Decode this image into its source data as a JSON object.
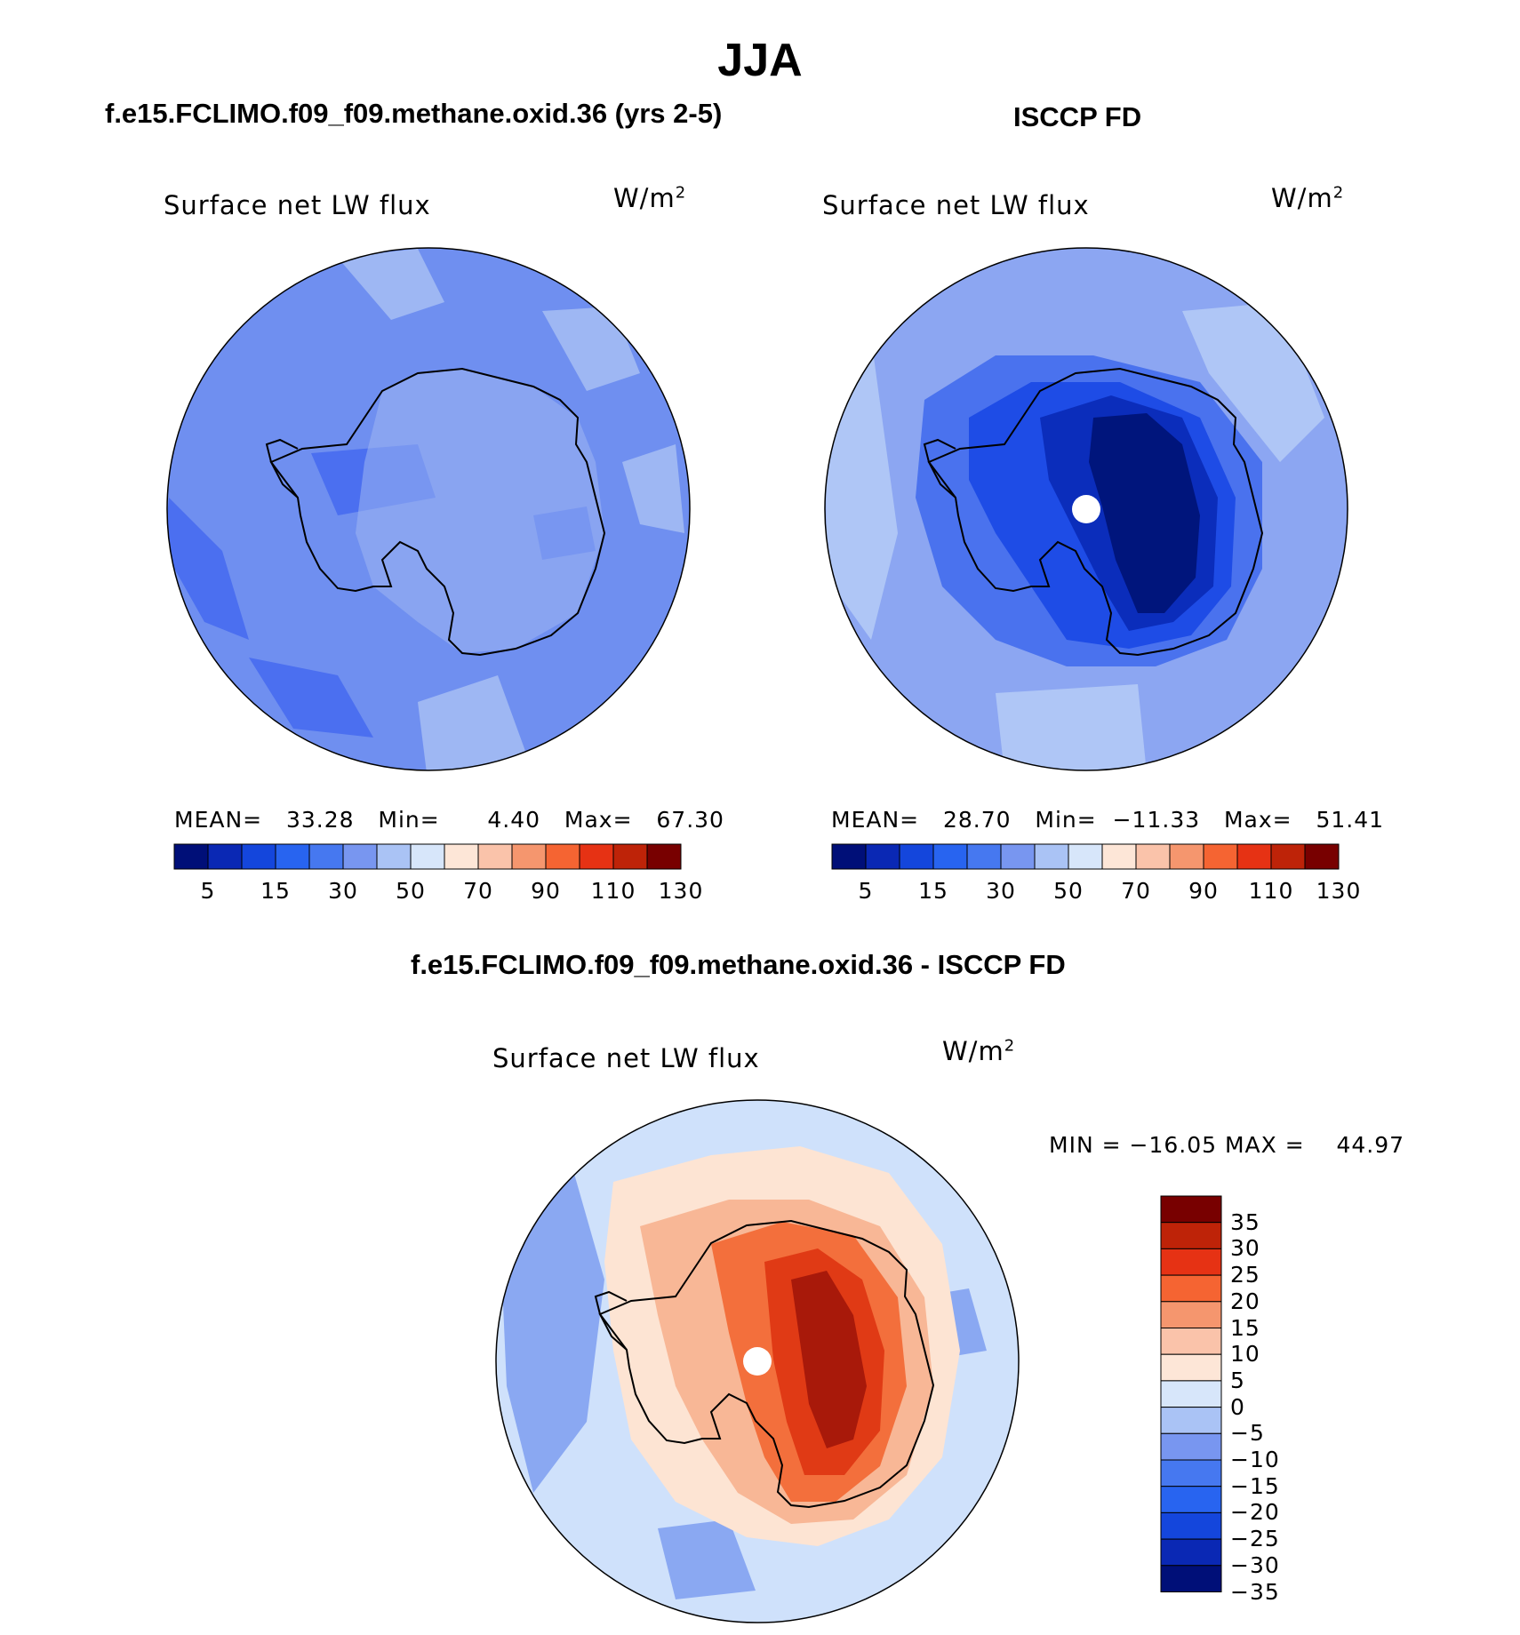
{
  "header": {
    "title": "JJA",
    "left_case": "f.e15.FCLIMO.f09_f09.methane.oxid.36 (yrs 2-5)",
    "right_case": "ISCCP FD",
    "diff_case": "f.e15.FCLIMO.f09_f09.methane.oxid.36 - ISCCP FD"
  },
  "panels": {
    "model": {
      "title": "Surface net LW flux",
      "units": "W/m",
      "units_sup": "2",
      "stats": {
        "mean_label": "MEAN=",
        "mean": "33.28",
        "min_label": "Min=",
        "min": "4.40",
        "max_label": "Max=",
        "max": "67.30"
      }
    },
    "obs": {
      "title": "Surface net LW flux",
      "units": "W/m",
      "units_sup": "2",
      "stats": {
        "mean_label": "MEAN=",
        "mean": "28.70",
        "min_label": "Min=",
        "min": "−11.33",
        "max_label": "Max=",
        "max": "51.41"
      }
    },
    "diff": {
      "title": "Surface net LW flux",
      "units": "W/m",
      "units_sup": "2",
      "stats": {
        "min_label": "MIN =",
        "min": "−16.05",
        "max_label": "MAX =",
        "max": "44.97"
      }
    }
  },
  "colorbars": {
    "abs": {
      "colors": [
        "#000f78",
        "#0a28b4",
        "#1446dc",
        "#2864f0",
        "#4678f0",
        "#7896f0",
        "#aac3f5",
        "#d7e6fa",
        "#fde6d7",
        "#fac3aa",
        "#f5966e",
        "#f56432",
        "#e63214",
        "#be2308",
        "#780000"
      ],
      "labels": [
        "5",
        "15",
        "30",
        "50",
        "70",
        "90",
        "110",
        "130"
      ]
    },
    "diff": {
      "colors": [
        "#000f78",
        "#0a28b4",
        "#1446dc",
        "#2864f0",
        "#4678f0",
        "#7896f0",
        "#aac3f5",
        "#d7e6fa",
        "#fde6d7",
        "#fac3aa",
        "#f5966e",
        "#f56432",
        "#e63214",
        "#be2308",
        "#780000"
      ],
      "labels": [
        "−35",
        "−30",
        "−25",
        "−20",
        "−15",
        "−10",
        "−5",
        "0",
        "5",
        "10",
        "15",
        "20",
        "25",
        "30",
        "35"
      ]
    }
  },
  "map_colors": {
    "model_ocean": "#6f8ff0",
    "model_deep": "#4b6ff0",
    "model_light": "#9eb7f3",
    "obs_ocean": "#8ca6f2",
    "obs_light": "#afc6f6",
    "obs_mid": "#4a72ee",
    "obs_inner": "#1e4ce6",
    "obs_core": "#0b2dbb",
    "obs_deep": "#00157c",
    "diff_ocean": "#cfe1fb",
    "diff_blue": "#8aa8f2",
    "diff_peach": "#fde4d3",
    "diff_light_orange": "#f8b796",
    "diff_orange": "#f36f3c",
    "diff_red": "#e03a15",
    "diff_dark": "#a8190a"
  }
}
